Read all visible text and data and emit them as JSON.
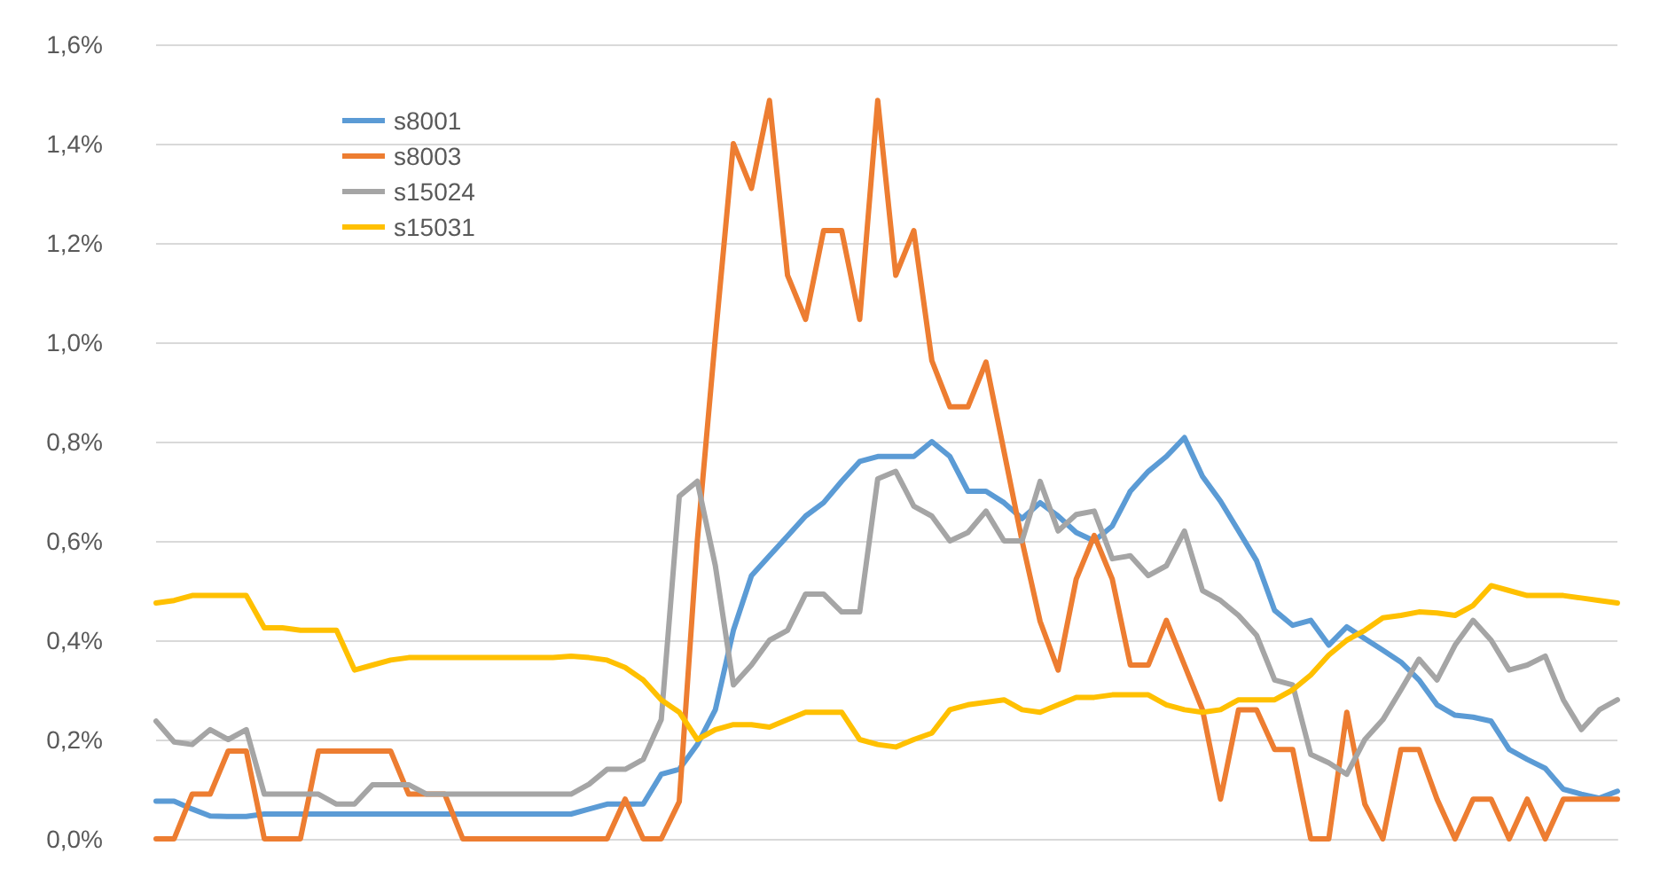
{
  "chart_data": {
    "type": "line",
    "categories": [
      null,
      null,
      null,
      null,
      null,
      null,
      null,
      null,
      null,
      null,
      null,
      null,
      null,
      null,
      null,
      null,
      null,
      null,
      null,
      null,
      null,
      null,
      null,
      null,
      null,
      null,
      null,
      null,
      null,
      null,
      null,
      null,
      null,
      null,
      null,
      null,
      null,
      null,
      null,
      null,
      null,
      null,
      null,
      null,
      null,
      null,
      null,
      null,
      null,
      null,
      null,
      null,
      null,
      null,
      null,
      null,
      null,
      null,
      null,
      null,
      null,
      null,
      null,
      null,
      null,
      null,
      null,
      null,
      null,
      null,
      null,
      null,
      null,
      null,
      null,
      null,
      null,
      null,
      null,
      null,
      null,
      null
    ],
    "series": [
      {
        "name": "s8001",
        "color": "#5b9bd5",
        "values": [
          0.076,
          0.076,
          0.06,
          0.046,
          0.045,
          0.045,
          0.05,
          0.05,
          0.05,
          0.05,
          0.05,
          0.05,
          0.05,
          0.05,
          0.05,
          0.05,
          0.05,
          0.05,
          0.05,
          0.05,
          0.05,
          0.05,
          0.05,
          0.05,
          0.06,
          0.07,
          0.07,
          0.07,
          0.13,
          0.14,
          0.19,
          0.26,
          0.42,
          0.53,
          0.57,
          0.61,
          0.65,
          0.677,
          0.72,
          0.76,
          0.77,
          0.77,
          0.77,
          0.8,
          0.77,
          0.7,
          0.7,
          0.677,
          0.645,
          0.677,
          0.65,
          0.617,
          0.6,
          0.63,
          0.7,
          0.74,
          0.77,
          0.808,
          0.73,
          0.68,
          0.62,
          0.56,
          0.46,
          0.43,
          0.44,
          0.39,
          0.427,
          0.403,
          0.38,
          0.356,
          0.32,
          0.27,
          0.249,
          0.245,
          0.237,
          0.18,
          0.16,
          0.142,
          0.1,
          0.09,
          0.082,
          0.096
        ]
      },
      {
        "name": "s8003",
        "color": "#ed7d31",
        "values": [
          0,
          0,
          0.09,
          0.09,
          0.177,
          0.177,
          0,
          0,
          0,
          0.177,
          0.177,
          0.177,
          0.177,
          0.177,
          0.09,
          0.09,
          0.09,
          0,
          0,
          0,
          0,
          0,
          0,
          0,
          0,
          0,
          0.08,
          0,
          0,
          0.075,
          0.6,
          1.01,
          1.4,
          1.31,
          1.487,
          1.135,
          1.046,
          1.225,
          1.225,
          1.046,
          1.487,
          1.135,
          1.225,
          0.963,
          0.87,
          0.87,
          0.96,
          0.78,
          0.6,
          0.438,
          0.34,
          0.523,
          0.611,
          0.523,
          0.35,
          0.35,
          0.44,
          0.35,
          0.26,
          0.08,
          0.26,
          0.26,
          0.18,
          0.18,
          0,
          0,
          0.255,
          0.07,
          0,
          0.18,
          0.18,
          0.08,
          0,
          0.08,
          0.08,
          0,
          0.08,
          0,
          0.08,
          0.08,
          0.08,
          0.08
        ]
      },
      {
        "name": "s15024",
        "color": "#a5a5a5",
        "values": [
          0.237,
          0.195,
          0.19,
          0.22,
          0.2,
          0.22,
          0.09,
          0.09,
          0.09,
          0.09,
          0.07,
          0.07,
          0.109,
          0.109,
          0.109,
          0.09,
          0.09,
          0.09,
          0.09,
          0.09,
          0.09,
          0.09,
          0.09,
          0.09,
          0.11,
          0.14,
          0.14,
          0.16,
          0.24,
          0.69,
          0.72,
          0.55,
          0.31,
          0.35,
          0.4,
          0.42,
          0.493,
          0.493,
          0.457,
          0.457,
          0.725,
          0.74,
          0.67,
          0.65,
          0.6,
          0.617,
          0.66,
          0.6,
          0.6,
          0.72,
          0.62,
          0.653,
          0.66,
          0.564,
          0.57,
          0.53,
          0.55,
          0.62,
          0.5,
          0.48,
          0.45,
          0.41,
          0.32,
          0.31,
          0.17,
          0.153,
          0.13,
          0.2,
          0.24,
          0.3,
          0.362,
          0.32,
          0.39,
          0.44,
          0.4,
          0.34,
          0.35,
          0.368,
          0.28,
          0.22,
          0.26,
          0.28
        ]
      },
      {
        "name": "s15031",
        "color": "#ffc000",
        "values": [
          0.475,
          0.48,
          0.49,
          0.49,
          0.49,
          0.49,
          0.425,
          0.425,
          0.42,
          0.42,
          0.42,
          0.34,
          0.35,
          0.36,
          0.365,
          0.365,
          0.365,
          0.365,
          0.365,
          0.365,
          0.365,
          0.365,
          0.365,
          0.368,
          0.365,
          0.36,
          0.345,
          0.32,
          0.28,
          0.255,
          0.2,
          0.22,
          0.23,
          0.23,
          0.225,
          0.24,
          0.255,
          0.255,
          0.255,
          0.2,
          0.19,
          0.185,
          0.2,
          0.213,
          0.26,
          0.27,
          0.275,
          0.28,
          0.26,
          0.255,
          0.27,
          0.285,
          0.285,
          0.29,
          0.29,
          0.29,
          0.27,
          0.26,
          0.255,
          0.26,
          0.28,
          0.28,
          0.28,
          0.3,
          0.33,
          0.37,
          0.4,
          0.42,
          0.445,
          0.45,
          0.457,
          0.455,
          0.45,
          0.47,
          0.51,
          0.5,
          0.49,
          0.49,
          0.49,
          0.485,
          0.48,
          0.475
        ]
      }
    ],
    "ylim": [
      0,
      1.6
    ],
    "yticks": [
      {
        "value": 0,
        "label": "0,0%"
      },
      {
        "value": 0.2,
        "label": "0,2%"
      },
      {
        "value": 0.4,
        "label": "0,4%"
      },
      {
        "value": 0.6,
        "label": "0,6%"
      },
      {
        "value": 0.8,
        "label": "0,8%"
      },
      {
        "value": 1.0,
        "label": "1,0%"
      },
      {
        "value": 1.2,
        "label": "1,2%"
      },
      {
        "value": 1.4,
        "label": "1,4%"
      },
      {
        "value": 1.6,
        "label": "1,6%"
      }
    ],
    "grid": "y",
    "legend": "top left",
    "marker": "none",
    "line_style": "solid",
    "tick_labels": "y"
  }
}
